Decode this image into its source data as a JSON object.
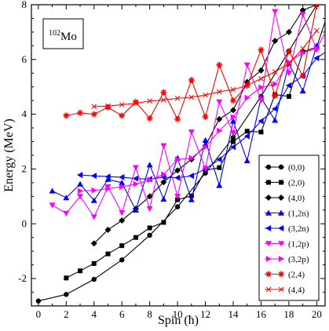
{
  "chart_data": {
    "type": "line",
    "xlabel": "Spin (ħ)",
    "ylabel": "Energy (MeV)",
    "xlim": [
      -0.5,
      20.6
    ],
    "ylim": [
      -3.0,
      8.0
    ],
    "xticks": [
      0,
      2,
      4,
      6,
      8,
      10,
      12,
      14,
      16,
      18,
      20
    ],
    "yticks": [
      -2,
      0,
      2,
      4,
      6,
      8
    ],
    "annotation": {
      "mass": "102",
      "element": "Mo"
    },
    "legend_position": "lower-right",
    "series": [
      {
        "name": "(0,0)",
        "color": "#000000",
        "marker": "circle",
        "line": "solid",
        "step": 2,
        "start": 0,
        "values": [
          -2.82,
          -2.58,
          -2.03,
          -1.32,
          -0.42,
          0.62,
          1.85,
          3.15,
          4.65,
          6.3,
          8.0
        ]
      },
      {
        "name": "(2,0)",
        "color": "#000000",
        "marker": "square",
        "line": "solid",
        "step": 1,
        "start": 2,
        "values": [
          -1.98,
          -1.72,
          -1.45,
          -1.1,
          -0.8,
          -0.5,
          -0.15,
          0.05,
          0.88,
          1.02,
          1.95,
          2.05,
          3.0,
          3.38,
          3.35,
          4.72,
          4.65,
          6.28,
          6.45,
          8.0
        ]
      },
      {
        "name": "(4,0)",
        "color": "#000000",
        "marker": "diamond",
        "line": "solid",
        "step": 1,
        "start": 4,
        "values": [
          -0.72,
          -0.22,
          0.12,
          0.55,
          1.0,
          1.52,
          1.95,
          2.35,
          2.85,
          3.82,
          4.15,
          5.18,
          5.6,
          6.68,
          7.0,
          7.8,
          8.0
        ]
      },
      {
        "name": "(1,2n)",
        "color": "#0000ff",
        "marker": "triangle-up",
        "line": "solid",
        "step": 1,
        "start": 1,
        "values": [
          1.2,
          0.95,
          1.45,
          0.85,
          1.62,
          1.5,
          0.5,
          2.15,
          0.9,
          2.4,
          0.88,
          3.05,
          1.4,
          3.75,
          2.3,
          4.6,
          3.78,
          5.85,
          4.85,
          6.5
        ]
      },
      {
        "name": "(3,2n)",
        "color": "#0000ff",
        "marker": "triangle-left",
        "line": "solid",
        "step": 1,
        "start": 3,
        "values": [
          1.78,
          1.75,
          1.72,
          1.7,
          1.65,
          1.63,
          1.7,
          1.68,
          1.75,
          2.0,
          2.35,
          2.8,
          3.2,
          3.75,
          4.2,
          5.05,
          5.4,
          6.05,
          6.4,
          6.8
        ]
      },
      {
        "name": "(1,2p)",
        "color": "#ff00ff",
        "marker": "triangle-down",
        "line": "solid",
        "step": 1,
        "start": 1,
        "values": [
          0.68,
          0.38,
          1.0,
          0.25,
          1.35,
          0.4,
          2.05,
          0.55,
          2.85,
          1.0,
          3.35,
          2.02,
          4.45,
          3.32,
          5.8,
          4.52,
          7.75,
          5.5,
          7.65,
          6.35
        ]
      },
      {
        "name": "(3,2p)",
        "color": "#ff00ff",
        "marker": "triangle-right",
        "line": "solid",
        "step": 1,
        "start": 3,
        "values": [
          1.2,
          1.22,
          1.28,
          1.35,
          1.45,
          1.6,
          1.8,
          2.35,
          2.4,
          2.8,
          3.4,
          3.9,
          4.6,
          4.98,
          5.1,
          5.9,
          6.25,
          6.4,
          7.35,
          6.15
        ]
      },
      {
        "name": "(2,4)",
        "color": "#ff0000",
        "marker": "asterisk",
        "line": "solid",
        "step": 1,
        "start": 2,
        "values": [
          3.95,
          4.05,
          4.0,
          4.25,
          3.95,
          4.45,
          3.85,
          4.8,
          3.82,
          5.25,
          3.9,
          5.8,
          4.5,
          5.05,
          6.35,
          4.68,
          6.3,
          5.4,
          8.0
        ]
      },
      {
        "name": "(4,4)",
        "color": "#ff0000",
        "marker": "cross",
        "line": "solid",
        "step": 1,
        "start": 4,
        "values": [
          4.28,
          4.3,
          4.35,
          4.4,
          4.48,
          4.52,
          4.58,
          4.62,
          4.7,
          4.82,
          4.9,
          5.05,
          5.3,
          5.55,
          5.85,
          6.4,
          7.05
        ]
      }
    ]
  }
}
